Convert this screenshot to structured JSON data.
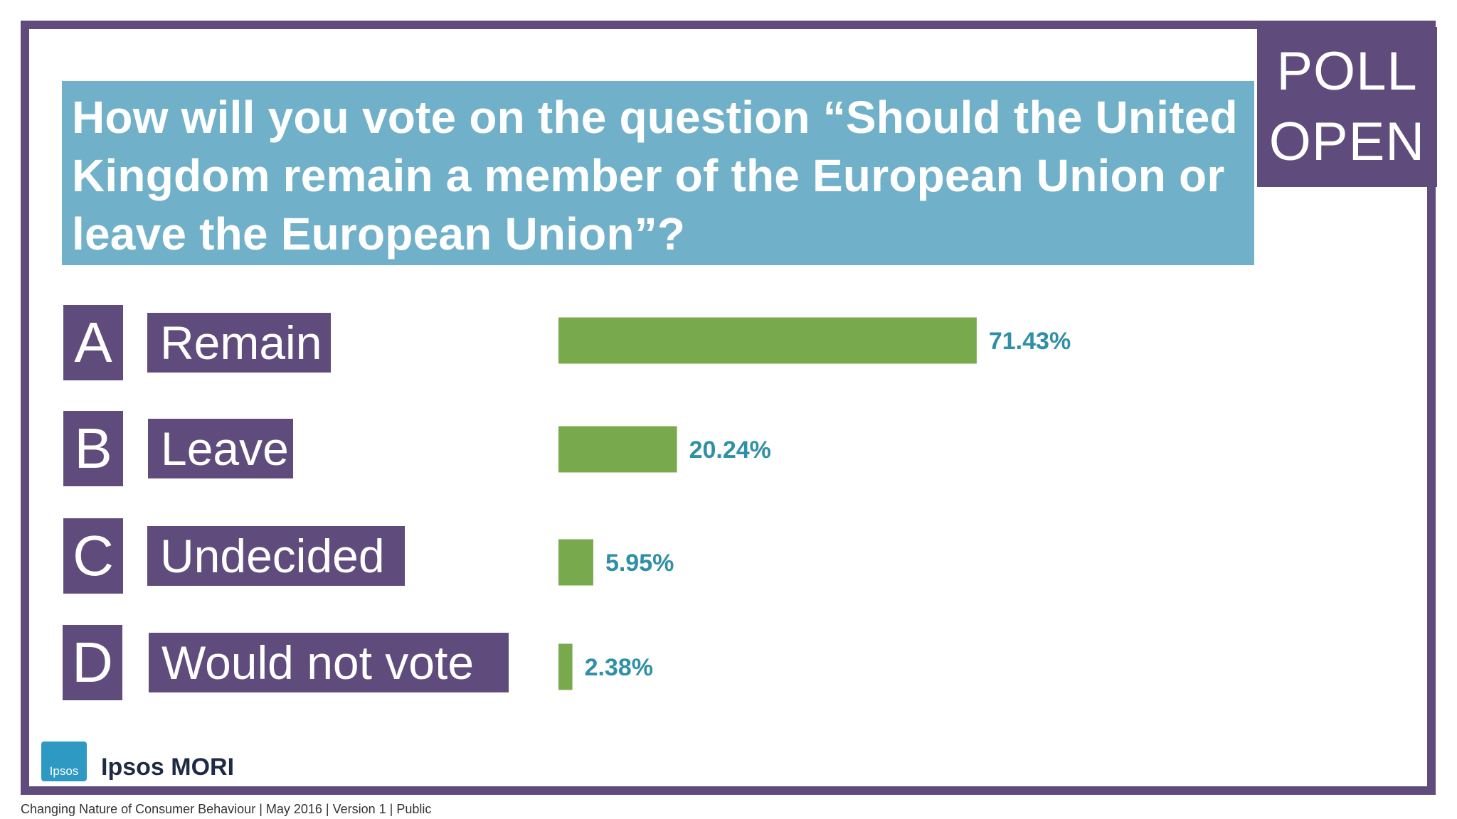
{
  "badge": {
    "line1": "POLL",
    "line2": "OPEN"
  },
  "question": "How will you vote on the question “Should the United Kingdom remain a member of the European Union or leave the European Union”?",
  "options": [
    {
      "letter": "A",
      "label": "Remain"
    },
    {
      "letter": "B",
      "label": "Leave"
    },
    {
      "letter": "C",
      "label": "Undecided"
    },
    {
      "letter": "D",
      "label": "Would not vote"
    }
  ],
  "chart_data": {
    "type": "bar",
    "orientation": "horizontal",
    "categories": [
      "Remain",
      "Leave",
      "Undecided",
      "Would not vote"
    ],
    "values": [
      71.43,
      20.24,
      5.95,
      2.38
    ],
    "value_labels": [
      "71.43%",
      "20.24%",
      "5.95%",
      "2.38%"
    ],
    "xlim": [
      0,
      100
    ],
    "bar_color": "#78aa4d",
    "label_color": "#2e8fa6",
    "grid": false
  },
  "brand": {
    "logo_text": "Ipsos",
    "name": "Ipsos MORI"
  },
  "footer": "Changing Nature of Consumer Behaviour |  May 2016 |  Version 1  |  Public",
  "colors": {
    "frame": "#5f4c7d",
    "question_bg": "#70b1c9"
  }
}
